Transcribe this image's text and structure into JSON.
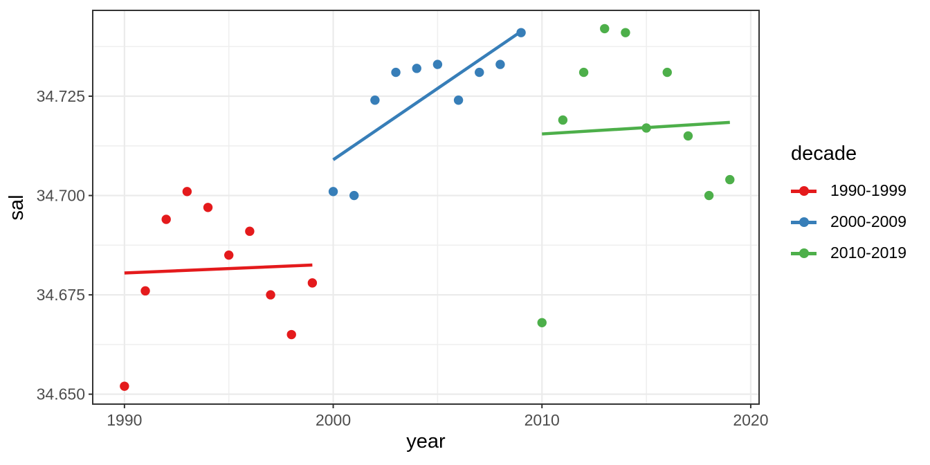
{
  "chart_data": {
    "type": "scatter",
    "title": "",
    "xlabel": "year",
    "ylabel": "sal",
    "legend_title": "decade",
    "legend_position": "right",
    "grid": true,
    "xlim": [
      1988.48,
      2020.4
    ],
    "ylim": [
      34.6475,
      34.7466
    ],
    "x_ticks": [
      1990,
      2000,
      2010,
      2020
    ],
    "x_minor_ticks": [
      1995,
      2005,
      2015
    ],
    "y_ticks": [
      34.65,
      34.675,
      34.7,
      34.725
    ],
    "y_tick_labels": [
      "34.650",
      "34.675",
      "34.700",
      "34.725"
    ],
    "y_minor_ticks": [
      34.6625,
      34.6875,
      34.7125,
      34.7375
    ],
    "series": [
      {
        "name": "1990-1999",
        "color": "#E41A1C",
        "points": [
          [
            1990,
            34.652
          ],
          [
            1991,
            34.676
          ],
          [
            1992,
            34.694
          ],
          [
            1993,
            34.701
          ],
          [
            1994,
            34.697
          ],
          [
            1995,
            34.685
          ],
          [
            1996,
            34.691
          ],
          [
            1997,
            34.675
          ],
          [
            1998,
            34.665
          ],
          [
            1999,
            34.678
          ]
        ],
        "trend": [
          [
            1990,
            34.6805
          ],
          [
            1999,
            34.6825
          ]
        ]
      },
      {
        "name": "2000-2009",
        "color": "#377EB8",
        "points": [
          [
            2000,
            34.701
          ],
          [
            2001,
            34.7
          ],
          [
            2002,
            34.724
          ],
          [
            2003,
            34.731
          ],
          [
            2004,
            34.732
          ],
          [
            2005,
            34.733
          ],
          [
            2006,
            34.724
          ],
          [
            2007,
            34.731
          ],
          [
            2008,
            34.733
          ],
          [
            2009,
            34.741
          ]
        ],
        "trend": [
          [
            2000,
            34.709
          ],
          [
            2009,
            34.7413
          ]
        ]
      },
      {
        "name": "2010-2019",
        "color": "#4DAF4A",
        "points": [
          [
            2010,
            34.668
          ],
          [
            2011,
            34.719
          ],
          [
            2012,
            34.731
          ],
          [
            2013,
            34.742
          ],
          [
            2014,
            34.741
          ],
          [
            2015,
            34.717
          ],
          [
            2016,
            34.731
          ],
          [
            2017,
            34.715
          ],
          [
            2018,
            34.7
          ],
          [
            2019,
            34.704
          ]
        ],
        "trend": [
          [
            2010,
            34.7155
          ],
          [
            2019,
            34.7184
          ]
        ]
      }
    ],
    "style": {
      "panel_background": "#FFFFFF",
      "grid_major_color": "#EBEBEB",
      "grid_minor_color": "#EFEFEF",
      "panel_border_color": "#333333",
      "tick_color": "#333333",
      "tick_label_color": "#4D4D4D"
    }
  }
}
